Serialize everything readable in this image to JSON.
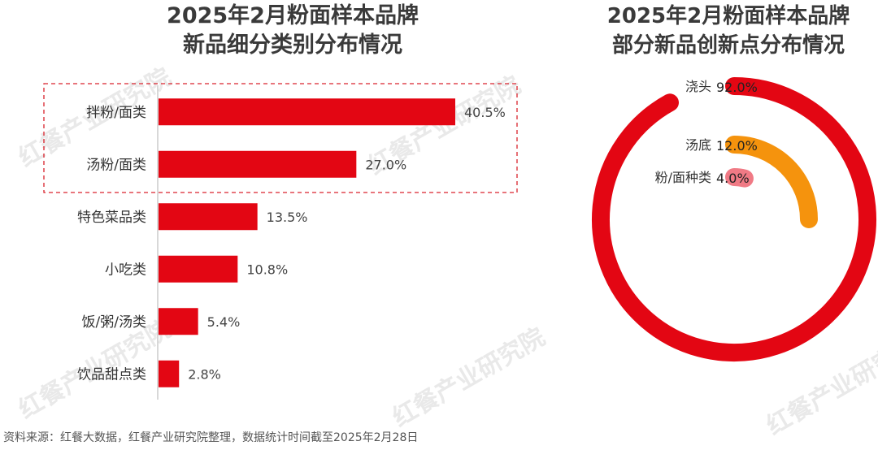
{
  "watermark_text": "红餐产业研究院",
  "footer": "资料来源：红餐大数据，红餐产业研究院整理，数据统计时间截至2025年2月28日",
  "colors": {
    "bar": "#e30613",
    "ring_outer": "#e30613",
    "ring_mid": "#f5930d",
    "ring_inner": "#f07a85",
    "highlight_box": "#d9232d"
  },
  "chart_data": [
    {
      "type": "bar",
      "orientation": "horizontal",
      "title_lines": [
        "2025年2月粉面样本品牌",
        "新品细分类别分布情况"
      ],
      "categories": [
        "拌粉/面类",
        "汤粉/面类",
        "特色菜品类",
        "小吃类",
        "饭/粥/汤类",
        "饮品甜点类"
      ],
      "values": [
        40.5,
        27.0,
        13.5,
        10.8,
        5.4,
        2.8
      ],
      "value_labels": [
        "40.5%",
        "27.0%",
        "13.5%",
        "10.8%",
        "5.4%",
        "2.8%"
      ],
      "unit": "%",
      "highlighted_categories": [
        "拌粉/面类",
        "汤粉/面类"
      ]
    },
    {
      "type": "pie",
      "variant": "radial-bar",
      "title_lines": [
        "2025年2月粉面样本品牌",
        "部分新品创新点分布情况"
      ],
      "categories": [
        "浇头",
        "汤底",
        "粉/面种类"
      ],
      "values": [
        92.0,
        12.0,
        4.0
      ],
      "value_labels": [
        "92.0%",
        "12.0%",
        "4.0%"
      ],
      "unit": "%"
    }
  ]
}
